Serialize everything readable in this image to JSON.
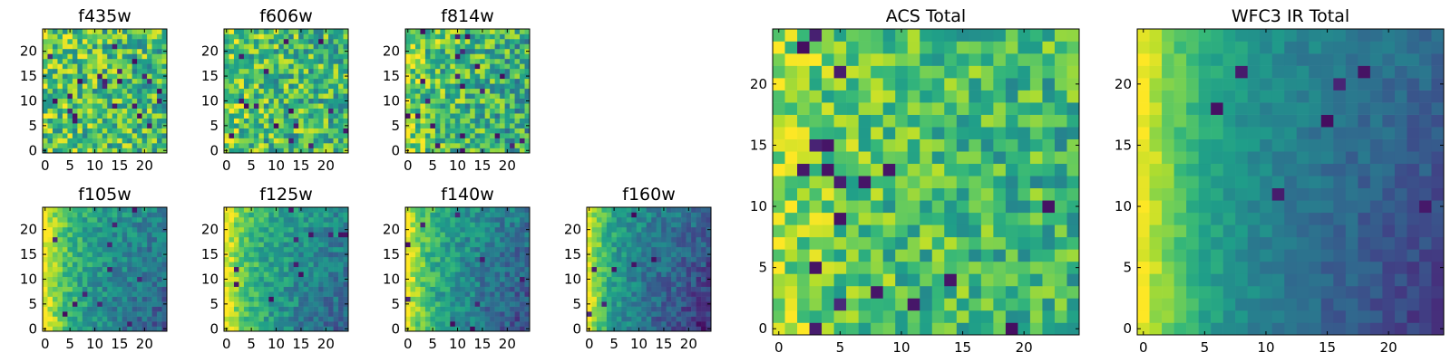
{
  "figure": {
    "colormap": [
      "#440154",
      "#482878",
      "#3e4989",
      "#31688e",
      "#26828e",
      "#1f9e89",
      "#35b779",
      "#6ece58",
      "#b5de2b",
      "#fde725"
    ]
  },
  "chart_data": [
    {
      "type": "heatmap",
      "title": "f435w",
      "grid_size": 25,
      "xticks": [
        "0",
        "5",
        "10",
        "15",
        "20"
      ],
      "yticks": [
        "0",
        "5",
        "10",
        "15",
        "20"
      ],
      "xlim": [
        -0.5,
        24.5
      ],
      "ylim": [
        -0.5,
        24.5
      ],
      "intensity_trend": "uniform noise, mostly green-yellow"
    },
    {
      "type": "heatmap",
      "title": "f606w",
      "grid_size": 25,
      "xticks": [
        "0",
        "5",
        "10",
        "15",
        "20"
      ],
      "yticks": [
        "0",
        "5",
        "10",
        "15",
        "20"
      ],
      "xlim": [
        -0.5,
        24.5
      ],
      "ylim": [
        -0.5,
        24.5
      ],
      "intensity_trend": "uniform noise, mostly green-yellow"
    },
    {
      "type": "heatmap",
      "title": "f814w",
      "grid_size": 25,
      "xticks": [
        "0",
        "5",
        "10",
        "15",
        "20"
      ],
      "yticks": [
        "0",
        "5",
        "10",
        "15",
        "20"
      ],
      "xlim": [
        -0.5,
        24.5
      ],
      "ylim": [
        -0.5,
        24.5
      ],
      "intensity_trend": "noise, slightly brighter toward left"
    },
    {
      "type": "heatmap",
      "title": "f105w",
      "grid_size": 25,
      "xticks": [
        "0",
        "5",
        "10",
        "15",
        "20"
      ],
      "yticks": [
        "0",
        "5",
        "10",
        "15",
        "20"
      ],
      "xlim": [
        -0.5,
        24.5
      ],
      "ylim": [
        -0.5,
        24.5
      ],
      "intensity_trend": "bright at left edge, darker toward right"
    },
    {
      "type": "heatmap",
      "title": "f125w",
      "grid_size": 25,
      "xticks": [
        "0",
        "5",
        "10",
        "15",
        "20"
      ],
      "yticks": [
        "0",
        "5",
        "10",
        "15",
        "20"
      ],
      "xlim": [
        -0.5,
        24.5
      ],
      "ylim": [
        -0.5,
        24.5
      ],
      "intensity_trend": "bright at left edge, darker toward right"
    },
    {
      "type": "heatmap",
      "title": "f140w",
      "grid_size": 25,
      "xticks": [
        "0",
        "5",
        "10",
        "15",
        "20"
      ],
      "yticks": [
        "0",
        "5",
        "10",
        "15",
        "20"
      ],
      "xlim": [
        -0.5,
        24.5
      ],
      "ylim": [
        -0.5,
        24.5
      ],
      "intensity_trend": "bright at left edge, darker toward right"
    },
    {
      "type": "heatmap",
      "title": "f160w",
      "grid_size": 25,
      "xticks": [
        "0",
        "5",
        "10",
        "15",
        "20"
      ],
      "yticks": [
        "0",
        "5",
        "10",
        "15",
        "20"
      ],
      "xlim": [
        -0.5,
        24.5
      ],
      "ylim": [
        -0.5,
        24.5
      ],
      "intensity_trend": "bright at left edge, darkest at lower right"
    },
    {
      "type": "heatmap",
      "title": "ACS Total",
      "grid_size": 25,
      "xticks": [
        "0",
        "5",
        "10",
        "15",
        "20"
      ],
      "yticks": [
        "0",
        "5",
        "10",
        "15",
        "20"
      ],
      "xlim": [
        -0.5,
        24.5
      ],
      "ylim": [
        -0.5,
        24.5
      ],
      "intensity_trend": "noise, brighter at left, scattered dark pixels"
    },
    {
      "type": "heatmap",
      "title": "WFC3 IR Total",
      "grid_size": 25,
      "xticks": [
        "0",
        "5",
        "10",
        "15",
        "20"
      ],
      "yticks": [
        "0",
        "5",
        "10",
        "15",
        "20"
      ],
      "xlim": [
        -0.5,
        24.5
      ],
      "ylim": [
        -0.5,
        24.5
      ],
      "intensity_trend": "smooth gradient: yellow at left edge to dark purple at right"
    }
  ]
}
